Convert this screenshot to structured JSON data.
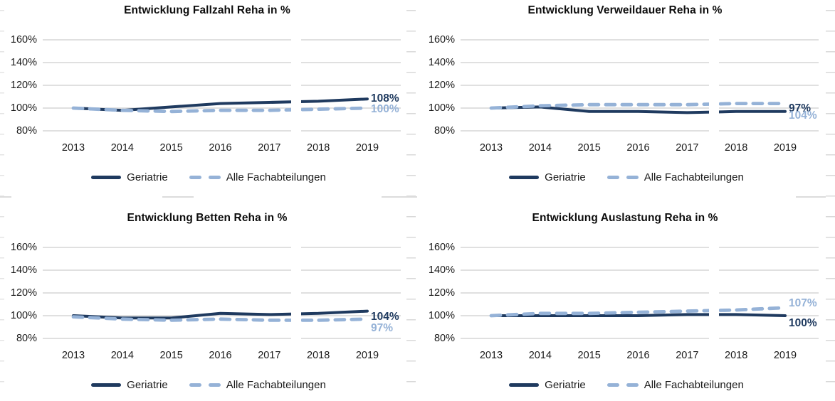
{
  "palette": {
    "geriatrie": "#1F3A5F",
    "alle_fachabteilungen": "#95B2D7",
    "gridline": "#D6D6D6",
    "axis_text": "#1a1a1a",
    "title_text": "#0d0d0d",
    "background": "#ffffff"
  },
  "chart_data": [
    {
      "type": "line",
      "title": "Entwicklung Fallzahl Reha in %",
      "x": [
        "2013",
        "2014",
        "2015",
        "2016",
        "2017",
        "2018",
        "2019"
      ],
      "y_ticks": [
        "160%",
        "140%",
        "120%",
        "100%",
        "80%"
      ],
      "ylim": [
        80,
        160
      ],
      "grid": true,
      "legend_position": "bottom",
      "series": [
        {
          "name": "Geriatrie",
          "color": "#1F3A5F",
          "dash": "solid",
          "values": [
            100,
            98,
            101,
            104,
            105,
            106,
            108
          ],
          "end_label": "108%",
          "label_dy": 0
        },
        {
          "name": "Alle Fachabteilungen",
          "color": "#95B2D7",
          "dash": "dashed",
          "values": [
            100,
            98,
            97,
            98,
            98,
            99,
            100
          ],
          "end_label": "100%",
          "label_dy": 2
        }
      ]
    },
    {
      "type": "line",
      "title": "Entwicklung Verweildauer Reha in %",
      "x": [
        "2013",
        "2014",
        "2015",
        "2016",
        "2017",
        "2018",
        "2019"
      ],
      "y_ticks": [
        "160%",
        "140%",
        "120%",
        "100%",
        "80%"
      ],
      "ylim": [
        80,
        160
      ],
      "grid": true,
      "legend_position": "bottom",
      "series": [
        {
          "name": "Geriatrie",
          "color": "#1F3A5F",
          "dash": "solid",
          "values": [
            100,
            101,
            97,
            97,
            96,
            97,
            97
          ],
          "end_label": "97%",
          "label_dy": -4
        },
        {
          "name": "Alle Fachabteilungen",
          "color": "#95B2D7",
          "dash": "dashed",
          "values": [
            100,
            102,
            103,
            103,
            103,
            104,
            104
          ],
          "end_label": "104%",
          "label_dy": 17
        }
      ]
    },
    {
      "type": "line",
      "title": "Entwicklung Betten Reha in %",
      "x": [
        "2013",
        "2014",
        "2015",
        "2016",
        "2017",
        "2018",
        "2019"
      ],
      "y_ticks": [
        "160%",
        "140%",
        "120%",
        "100%",
        "80%"
      ],
      "ylim": [
        80,
        160
      ],
      "grid": true,
      "legend_position": "bottom",
      "series": [
        {
          "name": "Geriatrie",
          "color": "#1F3A5F",
          "dash": "solid",
          "values": [
            100,
            98,
            98,
            102,
            101,
            102,
            104
          ],
          "end_label": "104%",
          "label_dy": 8
        },
        {
          "name": "Alle Fachabteilungen",
          "color": "#95B2D7",
          "dash": "dashed",
          "values": [
            99,
            97,
            96,
            97,
            96,
            96,
            97
          ],
          "end_label": "97%",
          "label_dy": 13
        }
      ]
    },
    {
      "type": "line",
      "title": "Entwicklung Auslastung Reha in %",
      "x": [
        "2013",
        "2014",
        "2015",
        "2016",
        "2017",
        "2018",
        "2019"
      ],
      "y_ticks": [
        "160%",
        "140%",
        "120%",
        "100%",
        "80%"
      ],
      "ylim": [
        80,
        160
      ],
      "grid": true,
      "legend_position": "bottom",
      "series": [
        {
          "name": "Geriatrie",
          "color": "#1F3A5F",
          "dash": "solid",
          "values": [
            100,
            100,
            100,
            100,
            101,
            101,
            100
          ],
          "end_label": "100%",
          "label_dy": 11
        },
        {
          "name": "Alle Fachabteilungen",
          "color": "#95B2D7",
          "dash": "dashed",
          "values": [
            100,
            102,
            102,
            103,
            104,
            105,
            107
          ],
          "end_label": "107%",
          "label_dy": -6
        }
      ]
    }
  ]
}
